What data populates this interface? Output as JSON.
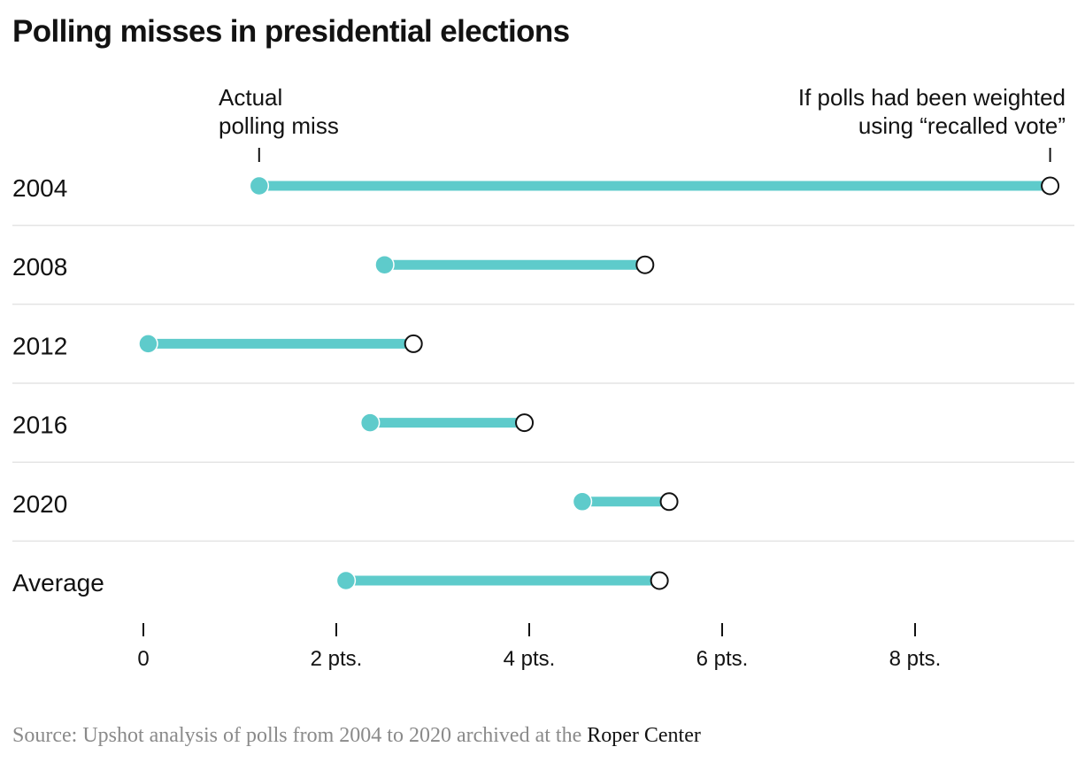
{
  "title": "Polling misses in presidential elections",
  "source": {
    "prefix": "Source: Upshot analysis of polls from 2004 to 2020 archived at the",
    "link": "Roper Center"
  },
  "colors": {
    "actual": "#5ecbcb",
    "text": "#121212",
    "divider": "#e4e4e4",
    "source": "#8a8a8a"
  },
  "chart_data": {
    "type": "dumbbell",
    "title": "Polling misses in presidential elections",
    "categories": [
      "2004",
      "2008",
      "2012",
      "2016",
      "2020",
      "Average"
    ],
    "series": [
      {
        "name": "Actual polling miss",
        "values": [
          1.2,
          2.5,
          0.05,
          2.35,
          4.55,
          2.1
        ],
        "marker": "filled circle"
      },
      {
        "name": "If polls had been weighted using “recalled vote”",
        "values": [
          9.4,
          5.2,
          2.8,
          3.95,
          5.45,
          5.35
        ],
        "marker": "open circle"
      }
    ],
    "legend_labels": {
      "actual": [
        "Actual",
        "polling miss"
      ],
      "recalled": [
        "If polls had been weighted",
        "using “recalled vote”"
      ]
    },
    "x_ticks": [
      {
        "value": 0,
        "label": "0"
      },
      {
        "value": 2,
        "label": "2 pts."
      },
      {
        "value": 4,
        "label": "4 pts."
      },
      {
        "value": 6,
        "label": "6 pts."
      },
      {
        "value": 8,
        "label": "8 pts."
      }
    ],
    "xlim": [
      0,
      9.5
    ],
    "legend_placement": "top, annotating first row"
  }
}
